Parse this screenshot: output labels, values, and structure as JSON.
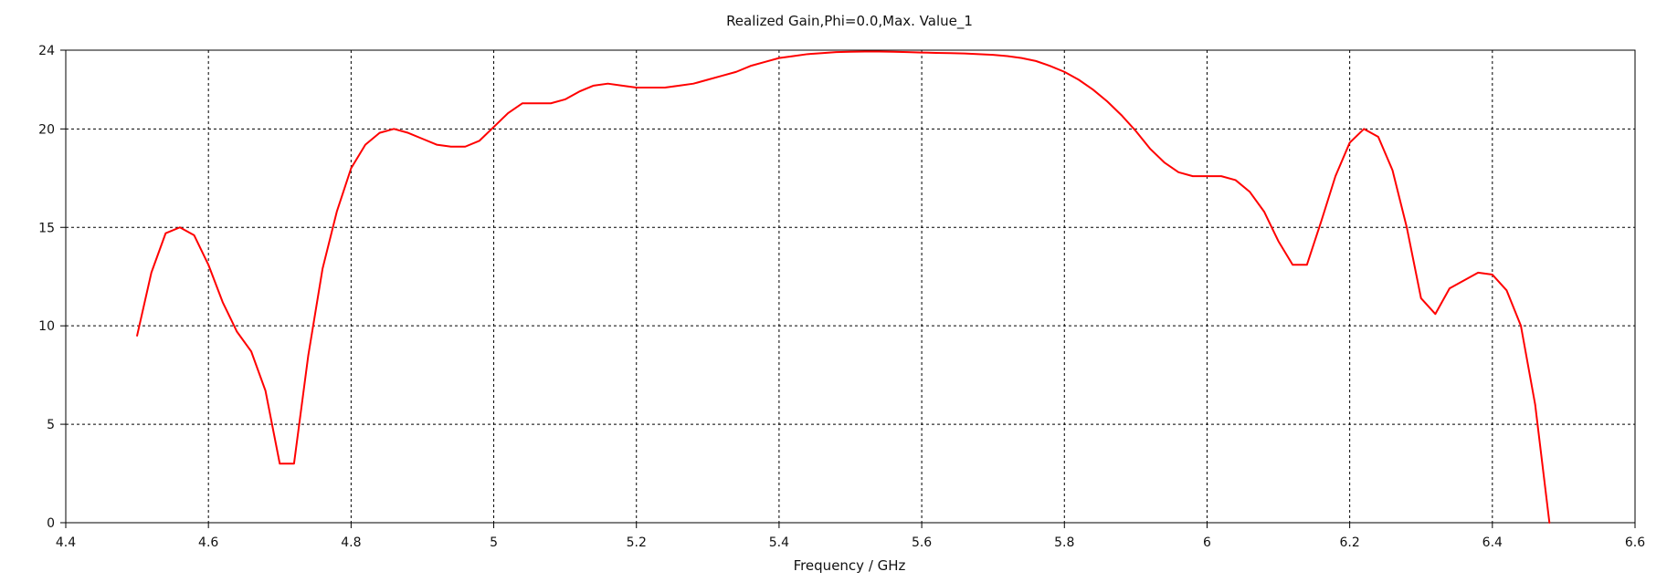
{
  "chart_data": {
    "type": "line",
    "title": "Realized Gain,Phi=0.0,Max. Value_1",
    "xlabel": "Frequency / GHz",
    "ylabel": "",
    "xlim": [
      4.4,
      6.6
    ],
    "ylim": [
      0,
      24
    ],
    "xticks": [
      4.4,
      4.6,
      4.8,
      5,
      5.2,
      5.4,
      5.6,
      5.8,
      6,
      6.2,
      6.4,
      6.6
    ],
    "xtick_labels": [
      "4.4",
      "4.6",
      "4.8",
      "5",
      "5.2",
      "5.4",
      "5.6",
      "5.8",
      "6",
      "6.2",
      "6.4",
      "6.6"
    ],
    "yticks": [
      0,
      5,
      10,
      15,
      20,
      24
    ],
    "ytick_labels": [
      "0",
      "5",
      "10",
      "15",
      "20",
      "24"
    ],
    "grid": true,
    "legend": "none",
    "series": [
      {
        "color": "#ff0000",
        "x": [
          4.5,
          4.52,
          4.54,
          4.56,
          4.58,
          4.6,
          4.62,
          4.64,
          4.66,
          4.68,
          4.7,
          4.72,
          4.74,
          4.76,
          4.78,
          4.8,
          4.82,
          4.84,
          4.86,
          4.88,
          4.9,
          4.92,
          4.94,
          4.96,
          4.98,
          5,
          5.02,
          5.04,
          5.06,
          5.08,
          5.1,
          5.12,
          5.14,
          5.16,
          5.18,
          5.2,
          5.22,
          5.24,
          5.26,
          5.28,
          5.3,
          5.32,
          5.34,
          5.36,
          5.38,
          5.4,
          5.42,
          5.44,
          5.46,
          5.48,
          5.5,
          5.52,
          5.54,
          5.56,
          5.58,
          5.6,
          5.62,
          5.64,
          5.66,
          5.68,
          5.7,
          5.72,
          5.74,
          5.76,
          5.78,
          5.8,
          5.82,
          5.84,
          5.86,
          5.88,
          5.9,
          5.92,
          5.94,
          5.96,
          5.98,
          6,
          6.02,
          6.04,
          6.06,
          6.08,
          6.1,
          6.12,
          6.14,
          6.16,
          6.18,
          6.2,
          6.22,
          6.24,
          6.26,
          6.28,
          6.3,
          6.32,
          6.34,
          6.36,
          6.38,
          6.4,
          6.42,
          6.44,
          6.46,
          6.48
        ],
        "y": [
          9.5,
          12.7,
          14.7,
          15.0,
          14.6,
          13.1,
          11.2,
          9.7,
          8.7,
          6.7,
          3.0,
          3.0,
          8.5,
          12.9,
          15.8,
          18.0,
          19.2,
          19.8,
          20.0,
          19.8,
          19.5,
          19.2,
          19.1,
          19.1,
          19.4,
          20.1,
          20.8,
          21.3,
          21.3,
          21.3,
          21.5,
          21.9,
          22.2,
          22.3,
          22.2,
          22.1,
          22.1,
          22.1,
          22.2,
          22.3,
          22.5,
          22.7,
          22.9,
          23.2,
          23.4,
          23.6,
          23.7,
          23.8,
          23.85,
          23.9,
          23.92,
          23.93,
          23.93,
          23.92,
          23.9,
          23.88,
          23.86,
          23.85,
          23.83,
          23.8,
          23.76,
          23.7,
          23.6,
          23.45,
          23.2,
          22.9,
          22.5,
          22.0,
          21.4,
          20.7,
          19.9,
          19.0,
          18.3,
          17.8,
          17.6,
          17.6,
          17.6,
          17.4,
          16.8,
          15.8,
          14.3,
          13.1,
          13.1,
          15.3,
          17.6,
          19.3,
          20.0,
          19.6,
          17.9,
          15.0,
          11.4,
          10.6,
          11.9,
          12.3,
          12.7,
          12.6,
          11.8,
          10.0,
          6.0,
          0.0
        ]
      }
    ]
  }
}
